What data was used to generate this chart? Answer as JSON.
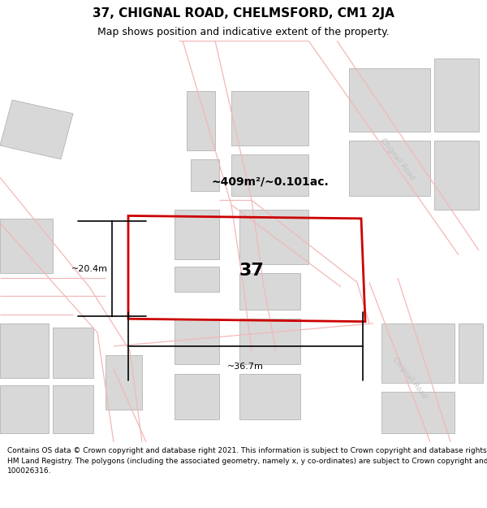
{
  "title": "37, CHIGNAL ROAD, CHELMSFORD, CM1 2JA",
  "subtitle": "Map shows position and indicative extent of the property.",
  "footer": "Contains OS data © Crown copyright and database right 2021. This information is subject to Crown copyright and database rights 2023 and is reproduced with the permission of\nHM Land Registry. The polygons (including the associated geometry, namely x, y co-ordinates) are subject to Crown copyright and database rights 2023 Ordnance Survey\n100026316.",
  "area_label": "~409m²/~0.101ac.",
  "width_label": "~36.7m",
  "height_label": "~20.4m",
  "plot_number": "37",
  "map_bg": "#f0f0f0",
  "road_color": "#f2b8b8",
  "building_color": "#d8d8d8",
  "building_outline": "#aaaaaa",
  "highlight_color": "#cc0000",
  "road_label_color": "#c0c0c0",
  "title_fontsize": 11,
  "subtitle_fontsize": 9,
  "footer_fontsize": 6.5,
  "annot_fontsize": 8,
  "area_fontsize": 10,
  "plot_num_fontsize": 16
}
